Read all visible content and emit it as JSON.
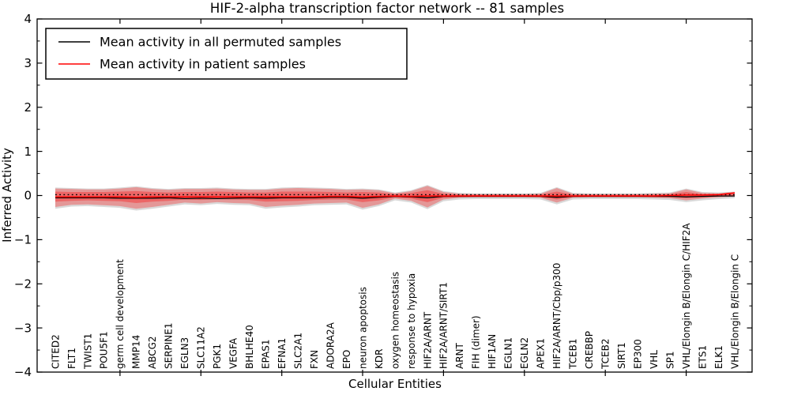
{
  "chart_data": {
    "type": "line",
    "title": "HIF-2-alpha transcription factor network -- 81 samples",
    "xlabel": "Cellular Entities",
    "ylabel": "Inferred Activity",
    "ylim": [
      -4,
      4
    ],
    "yticks": [
      4,
      3,
      2,
      1,
      0,
      -1,
      -2,
      -3,
      -4
    ],
    "ytick_labels": [
      "4",
      "3",
      "2",
      "1",
      "0",
      "−1",
      "−2",
      "−3",
      "−4"
    ],
    "x_major_tick_every": 5,
    "grid": false,
    "legend_position": "upper left",
    "categories": [
      "CITED2",
      "FLT1",
      "TWIST1",
      "POU5F1",
      "germ cell development",
      "MMP14",
      "ABCG2",
      "SERPINE1",
      "EGLN3",
      "SLC11A2",
      "PGK1",
      "VEGFA",
      "BHLHE40",
      "EPAS1",
      "EFNA1",
      "SLC2A1",
      "FXN",
      "ADORA2A",
      "EPO",
      "neuron apoptosis",
      "KDR",
      "oxygen homeostasis",
      "response to hypoxia",
      "HIF2A/ARNT",
      "HIF2A/ARNT/SIRT1",
      "ARNT",
      "FIH (dimer)",
      "HIF1AN",
      "EGLN1",
      "EGLN2",
      "APEX1",
      "HIF2A/ARNT/Cbp/p300",
      "TCEB1",
      "CREBBP",
      "TCEB2",
      "SIRT1",
      "EP300",
      "VHL",
      "SP1",
      "VHL/Elongin B/Elongin C/HIF2A",
      "ETS1",
      "ELK1",
      "VHL/Elongin B/Elongin C"
    ],
    "series": [
      {
        "name": "Mean activity in all permuted samples",
        "color": "#000000",
        "values": [
          -0.05,
          -0.05,
          -0.05,
          -0.05,
          -0.06,
          -0.06,
          -0.06,
          -0.05,
          -0.07,
          -0.06,
          -0.07,
          -0.06,
          -0.05,
          -0.06,
          -0.05,
          -0.05,
          -0.05,
          -0.04,
          -0.04,
          -0.06,
          -0.04,
          -0.02,
          -0.03,
          -0.05,
          -0.02,
          -0.02,
          -0.02,
          -0.02,
          -0.02,
          -0.02,
          -0.02,
          -0.04,
          -0.02,
          -0.02,
          -0.02,
          -0.02,
          -0.02,
          -0.02,
          -0.02,
          -0.03,
          -0.02,
          -0.01,
          -0.01
        ]
      },
      {
        "name": "Mean activity in patient samples",
        "color": "#ff0000",
        "values": [
          -0.03,
          -0.03,
          -0.03,
          -0.03,
          -0.03,
          -0.04,
          -0.03,
          -0.03,
          -0.03,
          -0.03,
          -0.03,
          -0.03,
          -0.03,
          -0.03,
          -0.03,
          -0.03,
          -0.03,
          -0.02,
          -0.02,
          -0.03,
          -0.02,
          -0.01,
          -0.02,
          -0.01,
          -0.01,
          -0.01,
          -0.01,
          -0.01,
          -0.01,
          -0.01,
          -0.01,
          -0.01,
          -0.01,
          -0.01,
          -0.01,
          -0.01,
          -0.01,
          -0.01,
          0.0,
          0.01,
          0.01,
          0.02,
          0.06
        ]
      }
    ],
    "reference_line": {
      "style": "dotted",
      "color": "#000000",
      "value": 0.02
    },
    "bands": [
      {
        "name": "permuted-samples-band",
        "color": "#aaaaaa",
        "opacity": 0.45,
        "upper": [
          0.18,
          0.17,
          0.16,
          0.16,
          0.18,
          0.21,
          0.17,
          0.15,
          0.17,
          0.17,
          0.18,
          0.16,
          0.15,
          0.15,
          0.18,
          0.19,
          0.18,
          0.17,
          0.15,
          0.16,
          0.14,
          0.07,
          0.12,
          0.24,
          0.1,
          0.06,
          0.05,
          0.05,
          0.05,
          0.05,
          0.06,
          0.19,
          0.06,
          0.05,
          0.05,
          0.05,
          0.05,
          0.06,
          0.07,
          0.16,
          0.08,
          0.07,
          0.09
        ],
        "lower": [
          -0.3,
          -0.25,
          -0.24,
          -0.26,
          -0.28,
          -0.34,
          -0.3,
          -0.25,
          -0.2,
          -0.22,
          -0.19,
          -0.21,
          -0.22,
          -0.3,
          -0.27,
          -0.25,
          -0.22,
          -0.21,
          -0.2,
          -0.32,
          -0.24,
          -0.11,
          -0.16,
          -0.31,
          -0.13,
          -0.09,
          -0.08,
          -0.08,
          -0.08,
          -0.08,
          -0.09,
          -0.2,
          -0.09,
          -0.08,
          -0.08,
          -0.08,
          -0.08,
          -0.09,
          -0.1,
          -0.15,
          -0.11,
          -0.08,
          -0.06
        ]
      },
      {
        "name": "patient-samples-outer-band",
        "color": "#ff0000",
        "opacity": 0.3,
        "upper": [
          0.16,
          0.15,
          0.14,
          0.14,
          0.16,
          0.19,
          0.15,
          0.13,
          0.15,
          0.15,
          0.16,
          0.14,
          0.13,
          0.13,
          0.16,
          0.17,
          0.16,
          0.15,
          0.13,
          0.14,
          0.12,
          0.05,
          0.1,
          0.22,
          0.08,
          0.04,
          0.03,
          0.03,
          0.03,
          0.03,
          0.04,
          0.17,
          0.04,
          0.03,
          0.03,
          0.03,
          0.03,
          0.04,
          0.05,
          0.14,
          0.06,
          0.05,
          0.08
        ],
        "lower": [
          -0.26,
          -0.21,
          -0.2,
          -0.22,
          -0.24,
          -0.3,
          -0.26,
          -0.21,
          -0.16,
          -0.18,
          -0.15,
          -0.17,
          -0.18,
          -0.26,
          -0.23,
          -0.21,
          -0.18,
          -0.17,
          -0.16,
          -0.28,
          -0.2,
          -0.07,
          -0.12,
          -0.27,
          -0.09,
          -0.05,
          -0.04,
          -0.04,
          -0.04,
          -0.04,
          -0.05,
          -0.16,
          -0.05,
          -0.04,
          -0.04,
          -0.04,
          -0.04,
          -0.05,
          -0.06,
          -0.11,
          -0.07,
          -0.04,
          -0.02
        ]
      },
      {
        "name": "patient-samples-inner-band",
        "color": "#ff0000",
        "opacity": 0.32,
        "upper": [
          0.09,
          0.08,
          0.08,
          0.08,
          0.09,
          0.1,
          0.08,
          0.07,
          0.08,
          0.08,
          0.09,
          0.08,
          0.07,
          0.07,
          0.09,
          0.09,
          0.09,
          0.08,
          0.07,
          0.08,
          0.07,
          0.03,
          0.06,
          0.12,
          0.04,
          0.02,
          0.02,
          0.02,
          0.02,
          0.02,
          0.02,
          0.09,
          0.02,
          0.02,
          0.02,
          0.02,
          0.02,
          0.02,
          0.03,
          0.08,
          0.03,
          0.03,
          0.04
        ],
        "lower": [
          -0.14,
          -0.12,
          -0.11,
          -0.12,
          -0.13,
          -0.17,
          -0.14,
          -0.12,
          -0.09,
          -0.1,
          -0.08,
          -0.09,
          -0.1,
          -0.14,
          -0.13,
          -0.12,
          -0.1,
          -0.09,
          -0.09,
          -0.15,
          -0.11,
          -0.04,
          -0.07,
          -0.15,
          -0.05,
          -0.03,
          -0.02,
          -0.02,
          -0.02,
          -0.02,
          -0.03,
          -0.09,
          -0.03,
          -0.02,
          -0.02,
          -0.02,
          -0.02,
          -0.03,
          -0.03,
          -0.06,
          -0.04,
          -0.02,
          -0.01
        ]
      }
    ]
  }
}
